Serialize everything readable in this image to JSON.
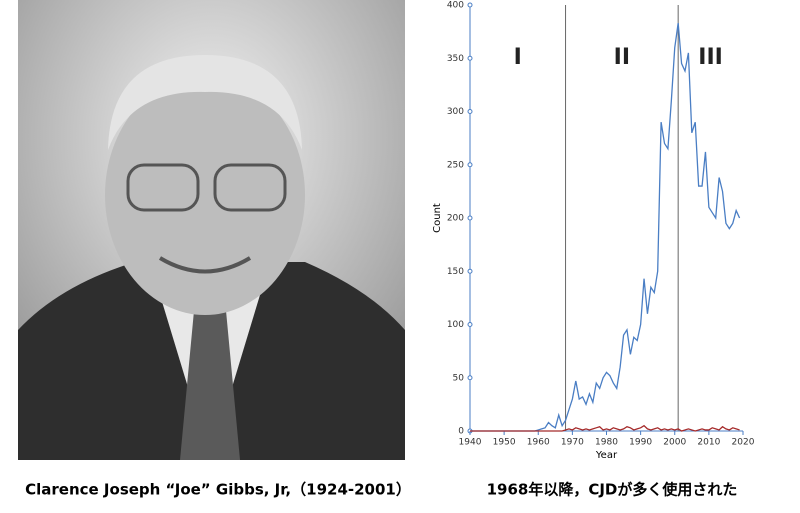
{
  "chart_data": {
    "type": "line",
    "x_label": "Year",
    "y_label": "Count",
    "x": [
      1940,
      1941,
      1942,
      1943,
      1944,
      1945,
      1946,
      1947,
      1948,
      1949,
      1950,
      1951,
      1952,
      1953,
      1954,
      1955,
      1956,
      1957,
      1958,
      1959,
      1960,
      1961,
      1962,
      1963,
      1964,
      1965,
      1966,
      1967,
      1968,
      1969,
      1970,
      1971,
      1972,
      1973,
      1974,
      1975,
      1976,
      1977,
      1978,
      1979,
      1980,
      1981,
      1982,
      1983,
      1984,
      1985,
      1986,
      1987,
      1988,
      1989,
      1990,
      1991,
      1992,
      1993,
      1994,
      1995,
      1996,
      1997,
      1998,
      1999,
      2000,
      2001,
      2002,
      2003,
      2004,
      2005,
      2006,
      2007,
      2008,
      2009,
      2010,
      2011,
      2012,
      2013,
      2014,
      2015,
      2016,
      2017,
      2018,
      2019
    ],
    "series": [
      {
        "color": "#4a7ec4",
        "values": [
          0,
          0,
          0,
          0,
          0,
          0,
          0,
          0,
          0,
          0,
          0,
          0,
          0,
          0,
          0,
          0,
          0,
          0,
          0,
          0,
          1,
          2,
          3,
          8,
          5,
          3,
          15,
          5,
          10,
          20,
          30,
          47,
          30,
          32,
          25,
          35,
          27,
          45,
          40,
          50,
          55,
          52,
          45,
          40,
          60,
          90,
          95,
          72,
          88,
          85,
          100,
          143,
          110,
          135,
          130,
          150,
          290,
          270,
          265,
          310,
          360,
          383,
          345,
          338,
          355,
          280,
          290,
          230,
          230,
          262,
          210,
          205,
          200,
          238,
          225,
          195,
          190,
          195,
          207,
          200
        ]
      },
      {
        "color": "#a52a2a",
        "values": [
          0,
          0,
          0,
          0,
          0,
          0,
          0,
          0,
          0,
          0,
          0,
          0,
          0,
          0,
          0,
          0,
          0,
          0,
          0,
          0,
          0,
          0,
          0,
          0,
          0,
          0,
          0,
          0,
          1,
          2,
          1,
          3,
          2,
          1,
          2,
          1,
          2,
          3,
          4,
          1,
          2,
          1,
          3,
          2,
          1,
          2,
          4,
          3,
          1,
          2,
          3,
          5,
          2,
          1,
          2,
          3,
          1,
          2,
          1,
          2,
          1,
          2,
          0,
          1,
          2,
          1,
          0,
          1,
          2,
          1,
          1,
          3,
          2,
          1,
          4,
          2,
          1,
          3,
          2,
          1
        ]
      }
    ],
    "xlim": [
      1940,
      2020
    ],
    "xticks": [
      1940,
      1950,
      1960,
      1970,
      1980,
      1990,
      2000,
      2010,
      2020
    ],
    "ylim": [
      0,
      400
    ],
    "yticks": [
      0,
      50,
      100,
      150,
      200,
      250,
      300,
      350,
      400
    ],
    "vlines": [
      1968,
      2001
    ],
    "region_labels": [
      "I",
      "II",
      "III"
    ]
  },
  "captions": {
    "photo": "Clarence Joseph “Joe” Gibbs, Jr,（1924-2001）",
    "chart": "1968年以降，CJDが多く使用された"
  }
}
